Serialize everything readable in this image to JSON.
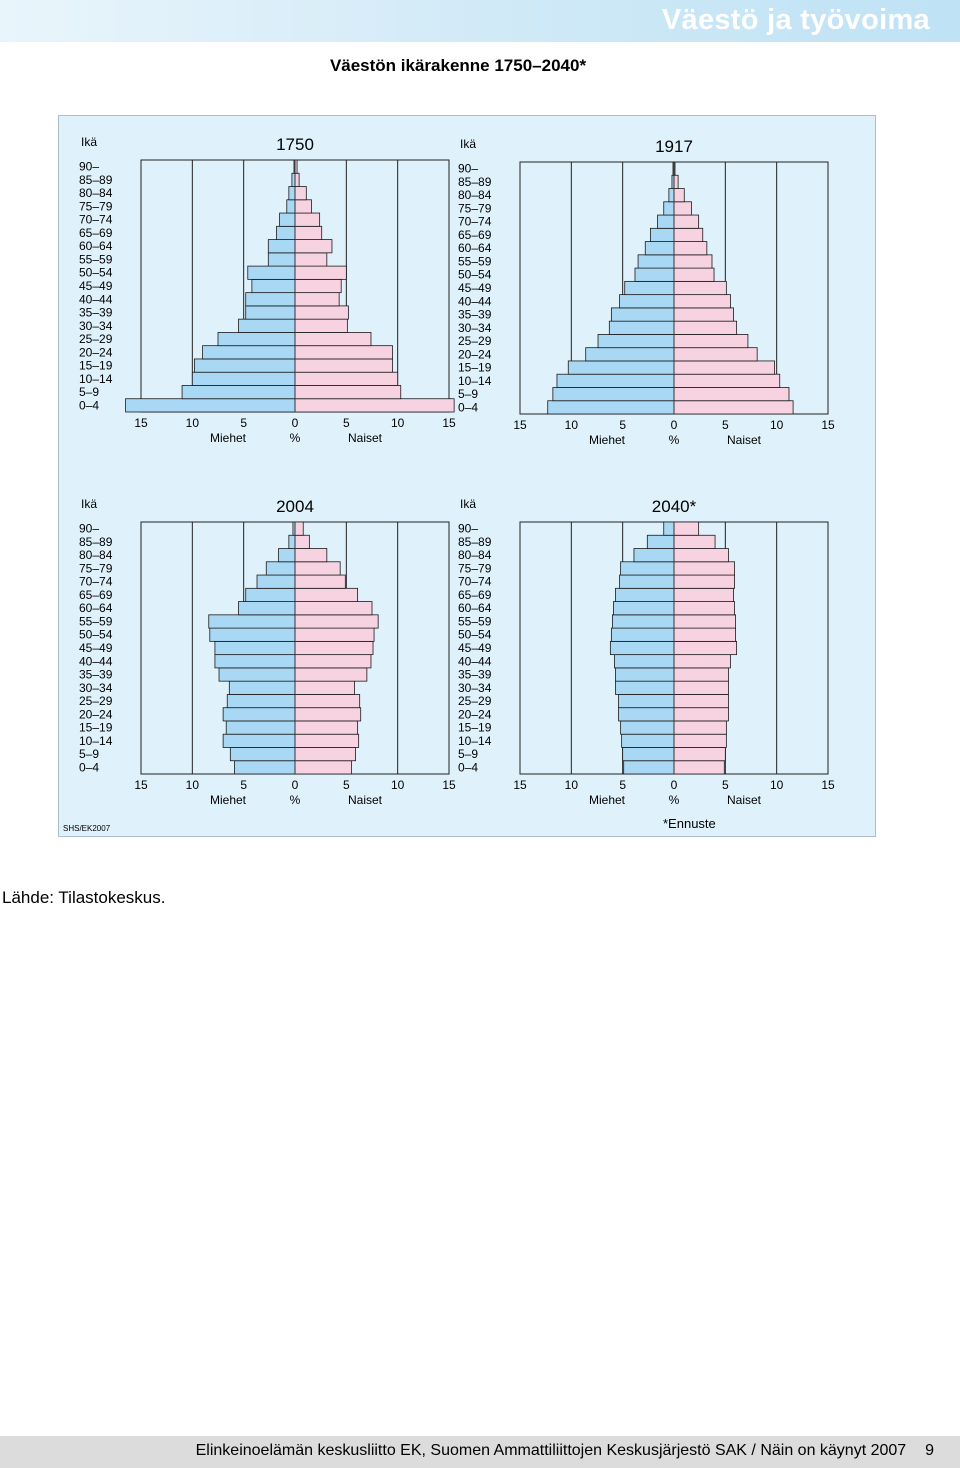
{
  "header": {
    "title": "Väestö ja työvoima"
  },
  "figure": {
    "title": "Väestön ikärakenne 1750–2040*",
    "credit": "SHS/EK2007",
    "note": "*Ennuste"
  },
  "source": "Lähde: Tilastokeskus.",
  "footer": {
    "text": "Elinkeinoelämän keskusliitto EK, Suomen Ammattiliittojen Keskusjärjestö SAK / Näin on käynyt 2007",
    "page": "9"
  },
  "colors": {
    "male": "#a8d8f3",
    "female": "#f7d3e1",
    "panel": "#dff1fb",
    "header": "#c6e5f6"
  },
  "chart_data": [
    {
      "type": "bar",
      "title": "1750",
      "ylabel": "Ikä",
      "xlabel": "%",
      "left_label": "Miehet",
      "right_label": "Naiset",
      "xticks": [
        "15",
        "10",
        "5",
        "0",
        "5",
        "10",
        "15"
      ],
      "xlim": [
        -15,
        15
      ],
      "categories": [
        "0–4",
        "5–9",
        "10–14",
        "15–19",
        "20–24",
        "25–29",
        "30–34",
        "35–39",
        "40–44",
        "45–49",
        "50–54",
        "55–59",
        "60–64",
        "65–69",
        "70–74",
        "75–79",
        "80–84",
        "85–89",
        "90–"
      ],
      "series": [
        {
          "name": "Miehet",
          "values": [
            16.5,
            11.0,
            10.0,
            9.8,
            9.0,
            7.5,
            5.5,
            4.8,
            4.8,
            4.2,
            4.6,
            2.6,
            2.6,
            1.8,
            1.5,
            0.8,
            0.6,
            0.3,
            0.1
          ]
        },
        {
          "name": "Naiset",
          "values": [
            15.5,
            10.3,
            10.0,
            9.5,
            9.5,
            7.4,
            5.1,
            5.2,
            4.3,
            4.5,
            5.0,
            3.1,
            3.6,
            2.6,
            2.4,
            1.6,
            1.1,
            0.4,
            0.2
          ]
        }
      ]
    },
    {
      "type": "bar",
      "title": "1917",
      "ylabel": "Ikä",
      "xlabel": "%",
      "left_label": "Miehet",
      "right_label": "Naiset",
      "xticks": [
        "15",
        "10",
        "5",
        "0",
        "5",
        "10",
        "15"
      ],
      "xlim": [
        -15,
        15
      ],
      "categories": [
        "0–4",
        "5–9",
        "10–14",
        "15–19",
        "20–24",
        "25–29",
        "30–34",
        "35–39",
        "40–44",
        "45–49",
        "50–54",
        "55–59",
        "60–64",
        "65–69",
        "70–74",
        "75–79",
        "80–84",
        "85–89",
        "90–"
      ],
      "series": [
        {
          "name": "Miehet",
          "values": [
            12.3,
            11.8,
            11.4,
            10.3,
            8.6,
            7.4,
            6.3,
            6.1,
            5.3,
            4.8,
            3.8,
            3.5,
            2.8,
            2.3,
            1.6,
            1.0,
            0.5,
            0.2,
            0.1
          ]
        },
        {
          "name": "Naiset",
          "values": [
            11.6,
            11.2,
            10.3,
            9.8,
            8.1,
            7.2,
            6.1,
            5.8,
            5.5,
            5.1,
            3.9,
            3.7,
            3.2,
            2.8,
            2.4,
            1.7,
            1.0,
            0.4,
            0.1
          ]
        }
      ]
    },
    {
      "type": "bar",
      "title": "2004",
      "ylabel": "Ikä",
      "xlabel": "%",
      "left_label": "Miehet",
      "right_label": "Naiset",
      "xticks": [
        "15",
        "10",
        "5",
        "0",
        "5",
        "10",
        "15"
      ],
      "xlim": [
        -15,
        15
      ],
      "categories": [
        "0–4",
        "5–9",
        "10–14",
        "15–19",
        "20–24",
        "25–29",
        "30–34",
        "35–39",
        "40–44",
        "45–49",
        "50–54",
        "55–59",
        "60–64",
        "65–69",
        "70–74",
        "75–79",
        "80–84",
        "85–89",
        "90–"
      ],
      "series": [
        {
          "name": "Miehet",
          "values": [
            5.9,
            6.3,
            7.0,
            6.7,
            7.0,
            6.6,
            6.4,
            7.4,
            7.8,
            7.8,
            8.3,
            8.4,
            5.5,
            4.8,
            3.7,
            2.8,
            1.6,
            0.6,
            0.2
          ]
        },
        {
          "name": "Naiset",
          "values": [
            5.5,
            5.9,
            6.2,
            6.1,
            6.4,
            6.3,
            5.8,
            7.0,
            7.4,
            7.6,
            7.7,
            8.1,
            7.5,
            6.1,
            4.9,
            4.4,
            3.1,
            1.4,
            0.8
          ]
        }
      ]
    },
    {
      "type": "bar",
      "title": "2040*",
      "ylabel": "Ikä",
      "xlabel": "%",
      "left_label": "Miehet",
      "right_label": "Naiset",
      "xticks": [
        "15",
        "10",
        "5",
        "0",
        "5",
        "10",
        "15"
      ],
      "xlim": [
        -15,
        15
      ],
      "categories": [
        "0–4",
        "5–9",
        "10–14",
        "15–19",
        "20–24",
        "25–29",
        "30–34",
        "35–39",
        "40–44",
        "45–49",
        "50–54",
        "55–59",
        "60–64",
        "65–69",
        "70–74",
        "75–79",
        "80–84",
        "85–89",
        "90–"
      ],
      "series": [
        {
          "name": "Miehet",
          "values": [
            4.9,
            5.0,
            5.1,
            5.2,
            5.4,
            5.4,
            5.7,
            5.7,
            5.8,
            6.2,
            6.1,
            6.0,
            5.9,
            5.7,
            5.3,
            5.2,
            3.9,
            2.6,
            1.0
          ]
        },
        {
          "name": "Naiset",
          "values": [
            4.9,
            5.0,
            5.1,
            5.1,
            5.3,
            5.3,
            5.3,
            5.3,
            5.5,
            6.1,
            6.0,
            6.0,
            5.9,
            5.8,
            5.9,
            5.9,
            5.3,
            4.0,
            2.4
          ]
        }
      ]
    }
  ]
}
